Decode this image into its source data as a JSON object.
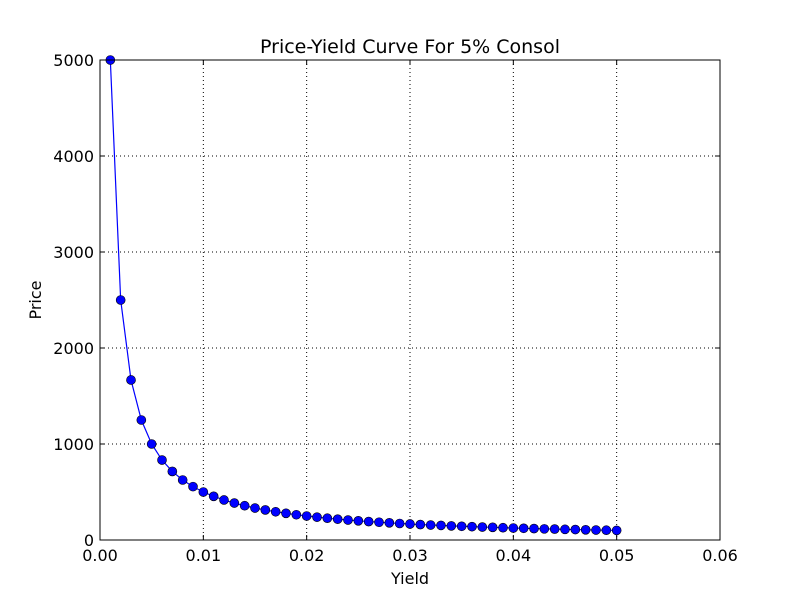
{
  "chart_data": {
    "type": "line",
    "title": "Price-Yield Curve For 5% Consol",
    "xlabel": "Yield",
    "ylabel": "Price",
    "xlim": [
      0.0,
      0.06
    ],
    "ylim": [
      0,
      5000
    ],
    "xticks": [
      0.0,
      0.01,
      0.02,
      0.03,
      0.04,
      0.05,
      0.06
    ],
    "xtick_labels": [
      "0.00",
      "0.01",
      "0.02",
      "0.03",
      "0.04",
      "0.05",
      "0.06"
    ],
    "yticks": [
      0,
      1000,
      2000,
      3000,
      4000,
      5000
    ],
    "ytick_labels": [
      "0",
      "1000",
      "2000",
      "3000",
      "4000",
      "5000"
    ],
    "grid": true,
    "series": [
      {
        "color": "#0000ff",
        "marker": "circle",
        "x": [
          0.001,
          0.002,
          0.003,
          0.004,
          0.005,
          0.006,
          0.007,
          0.008,
          0.009,
          0.01,
          0.011,
          0.012,
          0.013,
          0.014,
          0.015,
          0.016,
          0.017,
          0.018,
          0.019,
          0.02,
          0.021,
          0.022,
          0.023,
          0.024,
          0.025,
          0.026,
          0.027,
          0.028,
          0.029,
          0.03,
          0.031,
          0.032,
          0.033,
          0.034,
          0.035,
          0.036,
          0.037,
          0.038,
          0.039,
          0.04,
          0.041,
          0.042,
          0.043,
          0.044,
          0.045,
          0.046,
          0.047,
          0.048,
          0.049,
          0.05
        ],
        "y": [
          5000,
          2500,
          1667,
          1250,
          1000,
          833,
          714,
          625,
          556,
          500,
          455,
          417,
          385,
          357,
          333,
          313,
          294,
          278,
          263,
          250,
          238,
          227,
          217,
          208,
          200,
          192,
          185,
          179,
          172,
          167,
          161,
          156,
          152,
          147,
          143,
          139,
          135,
          132,
          128,
          125,
          122,
          119,
          116,
          114,
          111,
          109,
          106,
          104,
          102,
          100
        ]
      }
    ]
  }
}
